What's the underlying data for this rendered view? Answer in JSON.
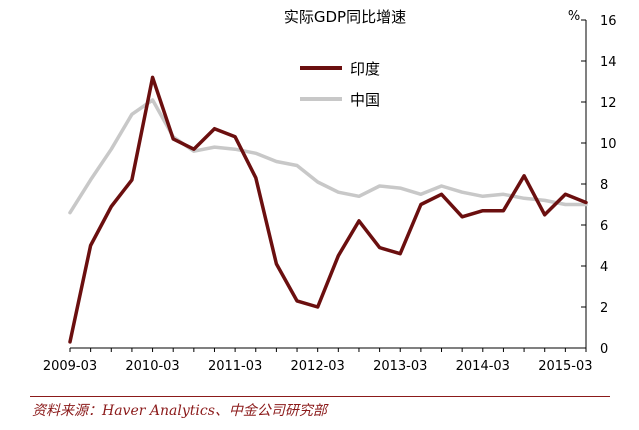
{
  "chart_data": {
    "type": "line",
    "title": "实际GDP同比增速",
    "ylabel": "%",
    "ylim": [
      0,
      16
    ],
    "yticks": [
      0,
      2,
      4,
      6,
      8,
      10,
      12,
      14,
      16
    ],
    "x": [
      "2009Q1",
      "2009Q2",
      "2009Q3",
      "2009Q4",
      "2010Q1",
      "2010Q2",
      "2010Q3",
      "2010Q4",
      "2011Q1",
      "2011Q2",
      "2011Q3",
      "2011Q4",
      "2012Q1",
      "2012Q2",
      "2012Q3",
      "2012Q4",
      "2013Q1",
      "2013Q2",
      "2013Q3",
      "2013Q4",
      "2014Q1",
      "2014Q2",
      "2014Q3",
      "2014Q4",
      "2015Q1",
      "2015Q2"
    ],
    "xtick_labels": [
      {
        "label": "2009-03",
        "index": 0
      },
      {
        "label": "2010-03",
        "index": 4
      },
      {
        "label": "2011-03",
        "index": 8
      },
      {
        "label": "2012-03",
        "index": 12
      },
      {
        "label": "2013-03",
        "index": 16
      },
      {
        "label": "2014-03",
        "index": 20
      },
      {
        "label": "2015-03",
        "index": 24
      }
    ],
    "series": [
      {
        "name": "印度",
        "color": "#6b0f0f",
        "values": [
          0.3,
          5.0,
          6.9,
          8.2,
          13.2,
          10.2,
          9.7,
          10.7,
          10.3,
          8.3,
          4.1,
          2.3,
          2.0,
          4.5,
          6.2,
          4.9,
          4.6,
          7.0,
          7.5,
          6.4,
          6.7,
          6.7,
          8.4,
          6.5,
          7.5,
          7.1
        ]
      },
      {
        "name": "中国",
        "color": "#c8c8c8",
        "values": [
          6.6,
          8.2,
          9.7,
          11.4,
          12.1,
          10.3,
          9.6,
          9.8,
          9.7,
          9.5,
          9.1,
          8.9,
          8.1,
          7.6,
          7.4,
          7.9,
          7.8,
          7.5,
          7.9,
          7.6,
          7.4,
          7.5,
          7.3,
          7.2,
          7.0,
          7.0
        ]
      }
    ],
    "legend": {
      "position": "top-center"
    },
    "grid": false
  },
  "source_text": "资料来源：Haver Analytics、中金公司研究部"
}
